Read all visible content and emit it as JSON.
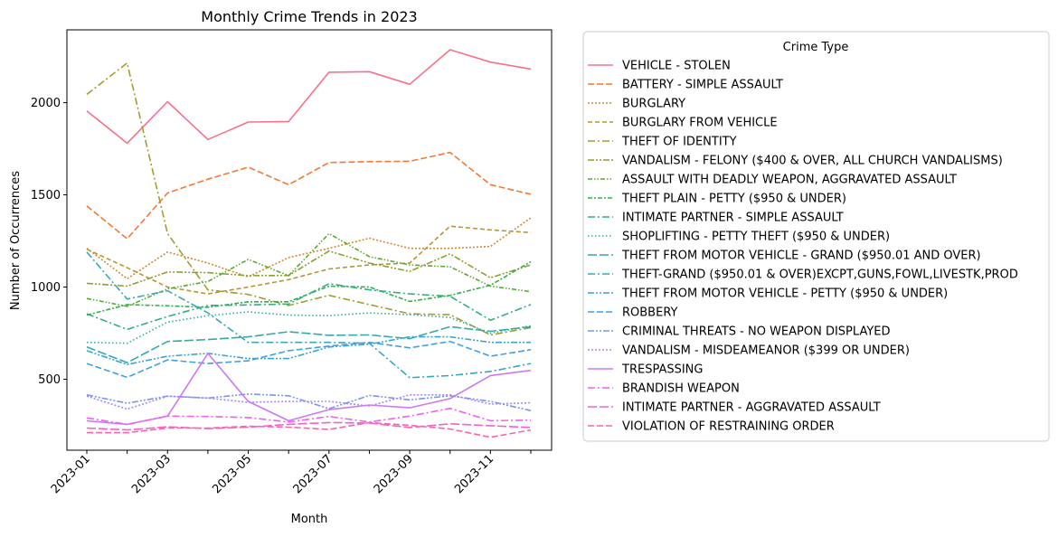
{
  "chart_data": {
    "type": "line",
    "title": "Monthly Crime Trends in 2023",
    "xlabel": "Month",
    "ylabel": "Number of Occurrences",
    "x": [
      "2023-01",
      "2023-02",
      "2023-03",
      "2023-04",
      "2023-05",
      "2023-06",
      "2023-07",
      "2023-08",
      "2023-09",
      "2023-10",
      "2023-11",
      "2023-12"
    ],
    "x_tick_labels": [
      "2023-01",
      "2023-03",
      "2023-05",
      "2023-07",
      "2023-09",
      "2023-11"
    ],
    "y_ticks": [
      500,
      1000,
      1500,
      2000
    ],
    "ylim": [
      115,
      2395
    ],
    "grid": false,
    "legend_title": "Crime Type",
    "legend_position": "outside-right",
    "series": [
      {
        "name": "VEHICLE - STOLEN",
        "color": "#f77189",
        "dash": "solid",
        "values": [
          1955,
          1780,
          2005,
          1800,
          1895,
          1898,
          2165,
          2168,
          2100,
          2287,
          2220,
          2182
        ]
      },
      {
        "name": "BATTERY - SIMPLE ASSAULT",
        "color": "#f37932",
        "dash": "dash",
        "values": [
          1440,
          1262,
          1510,
          1585,
          1650,
          1555,
          1675,
          1680,
          1682,
          1730,
          1555,
          1503
        ]
      },
      {
        "name": "BURGLARY",
        "color": "#cf8a32",
        "dash": "dot",
        "values": [
          1210,
          1045,
          1190,
          1130,
          1055,
          1160,
          1210,
          1265,
          1210,
          1210,
          1220,
          1375
        ]
      },
      {
        "name": "BURGLARY FROM VEHICLE",
        "color": "#b89531",
        "dash": "dash-short",
        "values": [
          1205,
          1105,
          1000,
          963,
          1000,
          1040,
          1098,
          1120,
          1130,
          1330,
          1310,
          1295
        ]
      },
      {
        "name": "THEFT OF IDENTITY",
        "color": "#a49c31",
        "dash": "dashdot",
        "values": [
          2045,
          2215,
          1290,
          985,
          960,
          900,
          955,
          905,
          855,
          850,
          740,
          780
        ]
      },
      {
        "name": "VANDALISM - FELONY ($400 & OVER, ALL CHURCH VANDALISMS)",
        "color": "#8ba231",
        "dash": "dashdotdot",
        "values": [
          1020,
          1005,
          1082,
          1078,
          1062,
          1063,
          1195,
          1130,
          1085,
          1180,
          1050,
          1120
        ]
      },
      {
        "name": "ASSAULT WITH DEADLY WEAPON, AGGRAVATED ASSAULT",
        "color": "#5aa931",
        "dash": "dashdotdot2",
        "values": [
          938,
          895,
          990,
          1030,
          1150,
          1062,
          1290,
          1165,
          1120,
          1110,
          1005,
          975
        ]
      },
      {
        "name": "THEFT PLAIN - PETTY ($950 & UNDER)",
        "color": "#33b04c",
        "dash": "dashdot2",
        "values": [
          848,
          905,
          898,
          890,
          920,
          920,
          1005,
          1000,
          922,
          955,
          1010,
          1138
        ]
      },
      {
        "name": "INTIMATE PARTNER - SIMPLE ASSAULT",
        "color": "#34ae7f",
        "dash": "dashdot",
        "values": [
          855,
          770,
          840,
          900,
          903,
          908,
          1018,
          985,
          963,
          950,
          820,
          905
        ]
      },
      {
        "name": "SHOPLIFTING - PETTY THEFT ($950 & UNDER)",
        "color": "#35ac96",
        "dash": "dot2",
        "values": [
          700,
          695,
          810,
          845,
          865,
          848,
          845,
          860,
          850,
          835,
          750,
          790
        ]
      },
      {
        "name": "THEFT FROM MOTOR VEHICLE - GRAND ($950.01 AND OVER)",
        "color": "#36aaa8",
        "dash": "longdash",
        "values": [
          675,
          590,
          705,
          715,
          730,
          758,
          738,
          740,
          720,
          785,
          760,
          785
        ]
      },
      {
        "name": "THEFT-GRAND ($950.01 & OVER)EXCPT,GUNS,FOWL,LIVESTK,PROD",
        "color": "#38a8bc",
        "dash": "dashdot",
        "values": [
          1190,
          935,
          980,
          860,
          700,
          700,
          700,
          695,
          508,
          520,
          542,
          585
        ]
      },
      {
        "name": "THEFT FROM MOTOR VEHICLE - PETTY ($950 & UNDER)",
        "color": "#3aa5d0",
        "dash": "dashdotdot",
        "values": [
          655,
          580,
          625,
          640,
          612,
          612,
          675,
          690,
          730,
          730,
          700,
          700
        ]
      },
      {
        "name": "ROBBERY",
        "color": "#41a0e4",
        "dash": "dash",
        "values": [
          585,
          510,
          605,
          585,
          600,
          655,
          680,
          700,
          670,
          705,
          625,
          660
        ]
      },
      {
        "name": "CRIMINAL THREATS - NO WEAPON DISPLAYED",
        "color": "#7795f4",
        "dash": "dashdotdot",
        "values": [
          415,
          370,
          408,
          398,
          420,
          410,
          340,
          412,
          388,
          410,
          380,
          330
        ]
      },
      {
        "name": "VANDALISM - MISDEAMEANOR ($399 OR UNDER)",
        "color": "#a28bf4",
        "dash": "dot",
        "values": [
          408,
          338,
          408,
          398,
          375,
          380,
          380,
          355,
          415,
          415,
          365,
          372
        ]
      },
      {
        "name": "TRESPASSING",
        "color": "#cc79f4",
        "dash": "solid",
        "values": [
          275,
          255,
          300,
          640,
          380,
          275,
          335,
          360,
          345,
          395,
          520,
          548
        ]
      },
      {
        "name": "BRANDISH WEAPON",
        "color": "#f25ef0",
        "dash": "dashdot",
        "values": [
          290,
          255,
          300,
          298,
          292,
          268,
          298,
          268,
          300,
          342,
          275,
          278
        ]
      },
      {
        "name": "INTIMATE PARTNER - AGGRAVATED ASSAULT",
        "color": "#f562c7",
        "dash": "longdash",
        "values": [
          235,
          225,
          242,
          232,
          240,
          255,
          265,
          262,
          238,
          258,
          248,
          238
        ]
      },
      {
        "name": "VIOLATION OF RESTRAINING ORDER",
        "color": "#f668a9",
        "dash": "dash",
        "values": [
          210,
          210,
          235,
          235,
          245,
          240,
          228,
          265,
          250,
          230,
          185,
          225
        ]
      }
    ]
  }
}
